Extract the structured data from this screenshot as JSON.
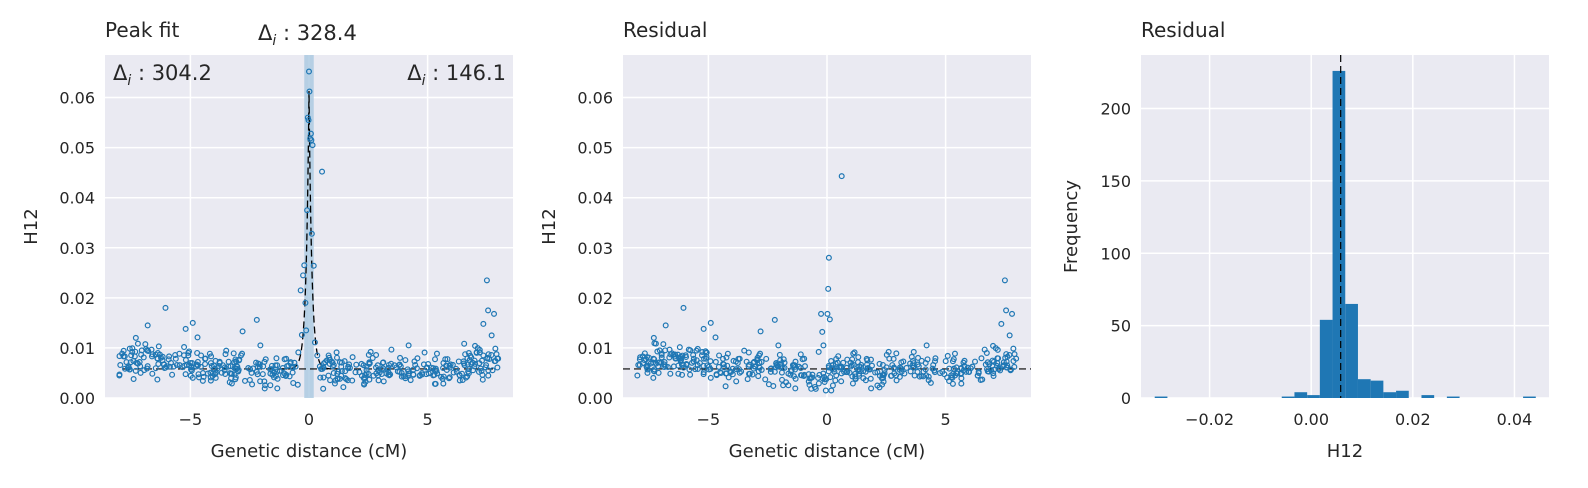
{
  "colors": {
    "background": "#eaeaf2",
    "grid": "#ffffff",
    "points": "#1f77b4",
    "bars": "#1f77b4",
    "highlight": "#a9c8e0",
    "reference_line": "#000000",
    "text": "#262626"
  },
  "chart_data": [
    {
      "type": "scatter",
      "title": "Peak fit",
      "xlabel": "Genetic distance (cM)",
      "ylabel": "H12",
      "xlim": [
        -8.6,
        8.6
      ],
      "ylim": [
        0,
        0.0685
      ],
      "xticks": [
        -5,
        0,
        5
      ],
      "xtick_labels": [
        "−5",
        "0",
        "5"
      ],
      "yticks": [
        0,
        0.01,
        0.02,
        0.03,
        0.04,
        0.05,
        0.06
      ],
      "ytick_labels": [
        "0.00",
        "0.01",
        "0.02",
        "0.03",
        "0.04",
        "0.05",
        "0.06"
      ],
      "grid": true,
      "highlight_band": [
        -0.2,
        0.2
      ],
      "annotations": [
        {
          "sym": "Δ",
          "sub": "i",
          "text": " : 328.4",
          "position": "top-center"
        },
        {
          "sym": "Δ",
          "sub": "i",
          "text": " : 304.2",
          "position": "top-left"
        },
        {
          "sym": "Δ",
          "sub": "i",
          "text": " : 146.1",
          "position": "top-right"
        }
      ],
      "baseline": 0.0058,
      "peak": {
        "center": 0,
        "height": 0.0555,
        "width": 0.12
      },
      "points_seed": 7,
      "points_count": 460,
      "series": [
        {
          "kind": "outliers",
          "x": [
            -6.05,
            -5.2,
            -4.9,
            -6.8,
            -7.05,
            -7.3,
            -2.8,
            -2.2,
            -2.05,
            -4.7,
            -4.55,
            -0.45,
            -0.35,
            -0.3,
            -0.25,
            -0.2,
            -0.15,
            -0.12,
            -0.08,
            -0.05,
            -0.02,
            0.0,
            0.02,
            0.05,
            0.08,
            0.1,
            0.12,
            0.15,
            0.2,
            0.25,
            0.35,
            0.55,
            2.6,
            4.2,
            7.0,
            7.2,
            7.35,
            7.5,
            7.55,
            7.7,
            7.8,
            7.35,
            7.6
          ],
          "y": [
            0.018,
            0.0138,
            0.015,
            0.0145,
            0.0095,
            0.012,
            0.0133,
            0.0156,
            0.0105,
            0.0121,
            0.0085,
            0.0091,
            0.0215,
            0.0126,
            0.0245,
            0.0265,
            0.019,
            0.0135,
            0.0375,
            0.056,
            0.0555,
            0.0652,
            0.0612,
            0.0518,
            0.0528,
            0.0515,
            0.0328,
            0.0505,
            0.0264,
            0.0111,
            0.0085,
            0.0452,
            0.0092,
            0.0105,
            0.0104,
            0.0096,
            0.0148,
            0.0235,
            0.0175,
            0.0125,
            0.0168,
            0.0085,
            0.0078
          ]
        }
      ]
    },
    {
      "type": "scatter",
      "title": "Residual",
      "xlabel": "Genetic distance (cM)",
      "ylabel": "H12",
      "xlim": [
        -8.6,
        8.6
      ],
      "ylim": [
        0,
        0.0685
      ],
      "xticks": [
        -5,
        0,
        5
      ],
      "xtick_labels": [
        "−5",
        "0",
        "5"
      ],
      "yticks": [
        0,
        0.01,
        0.02,
        0.03,
        0.04,
        0.05,
        0.06
      ],
      "ytick_labels": [
        "0.00",
        "0.01",
        "0.02",
        "0.03",
        "0.04",
        "0.05",
        "0.06"
      ],
      "grid": true,
      "baseline": 0.0058,
      "points_seed": 7,
      "points_count": 460,
      "series": [
        {
          "kind": "outliers",
          "x": [
            -6.05,
            -5.2,
            -4.9,
            -6.8,
            -7.05,
            -7.3,
            -2.8,
            -2.2,
            -2.05,
            -4.7,
            -4.55,
            -0.35,
            -0.25,
            -0.2,
            -0.15,
            -0.1,
            -0.05,
            0.02,
            0.05,
            0.08,
            0.12,
            0.18,
            0.25,
            0.35,
            0.62,
            2.6,
            4.2,
            7.0,
            7.2,
            7.35,
            7.5,
            7.55,
            7.7,
            7.8
          ],
          "y": [
            0.018,
            0.0138,
            0.015,
            0.0145,
            0.0095,
            0.012,
            0.0133,
            0.0156,
            0.0105,
            0.0121,
            0.0085,
            0.0092,
            0.0168,
            0.0132,
            0.0105,
            0.0032,
            0.0015,
            0.0168,
            0.0218,
            0.028,
            0.0157,
            0.0015,
            0.0025,
            0.0035,
            0.0443,
            0.0092,
            0.0105,
            0.0104,
            0.0096,
            0.0148,
            0.0235,
            0.0175,
            0.0125,
            0.0168
          ]
        }
      ]
    },
    {
      "type": "bar",
      "title": "Residual",
      "xlabel": "H12",
      "ylabel": "Frequency",
      "xlim": [
        -0.0335,
        0.0468
      ],
      "ylim": [
        0,
        237
      ],
      "xticks": [
        -0.02,
        0.0,
        0.02,
        0.04
      ],
      "xtick_labels": [
        "−0.02",
        "0.00",
        "0.02",
        "0.04"
      ],
      "yticks": [
        0,
        50,
        100,
        150,
        200
      ],
      "ytick_labels": [
        "0",
        "50",
        "100",
        "150",
        "200"
      ],
      "grid": true,
      "vline": 0.0058,
      "bins": [
        {
          "x0": -0.0308,
          "x1": -0.0283,
          "count": 1
        },
        {
          "x0": -0.0058,
          "x1": -0.0033,
          "count": 1
        },
        {
          "x0": -0.0033,
          "x1": -0.0008,
          "count": 4
        },
        {
          "x0": -0.0008,
          "x1": 0.0017,
          "count": 2
        },
        {
          "x0": 0.0017,
          "x1": 0.0042,
          "count": 54
        },
        {
          "x0": 0.0042,
          "x1": 0.0067,
          "count": 226
        },
        {
          "x0": 0.0067,
          "x1": 0.0092,
          "count": 65
        },
        {
          "x0": 0.0092,
          "x1": 0.0117,
          "count": 13
        },
        {
          "x0": 0.0117,
          "x1": 0.0142,
          "count": 12
        },
        {
          "x0": 0.0142,
          "x1": 0.0167,
          "count": 4
        },
        {
          "x0": 0.0167,
          "x1": 0.0192,
          "count": 5
        },
        {
          "x0": 0.0217,
          "x1": 0.0242,
          "count": 2
        },
        {
          "x0": 0.0267,
          "x1": 0.0292,
          "count": 1
        },
        {
          "x0": 0.0417,
          "x1": 0.0442,
          "count": 1
        }
      ]
    }
  ]
}
